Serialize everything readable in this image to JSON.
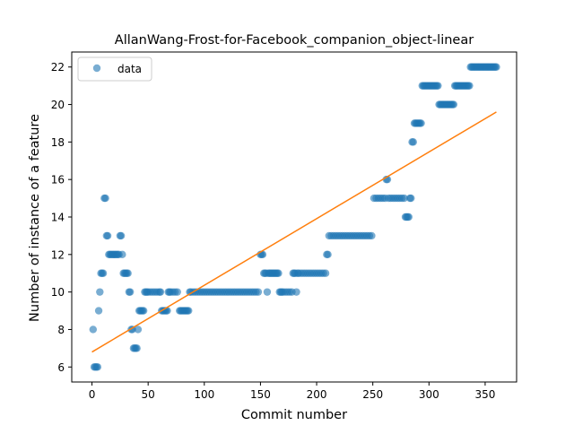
{
  "chart_data": {
    "type": "scatter",
    "title": "AllanWang-Frost-for-Facebook_companion_object-linear",
    "xlabel": "Commit number",
    "ylabel": "Number of instance of a feature",
    "xlim": [
      -18,
      378
    ],
    "ylim": [
      5.2,
      22.8
    ],
    "xticks": [
      0,
      50,
      100,
      150,
      200,
      250,
      300,
      350
    ],
    "yticks": [
      6,
      8,
      10,
      12,
      14,
      16,
      18,
      20,
      22
    ],
    "grid": false,
    "legend": {
      "position": "top-left",
      "entries": [
        "data"
      ]
    },
    "colors": {
      "scatter": "#1f77b4",
      "fit": "#ff7f0e"
    },
    "series": [
      {
        "name": "data",
        "kind": "scatter",
        "points": [
          [
            1,
            8
          ],
          [
            2,
            6
          ],
          [
            3,
            6
          ],
          [
            4,
            6
          ],
          [
            5,
            6
          ],
          [
            6,
            9
          ],
          [
            7,
            10
          ],
          [
            8,
            11
          ],
          [
            9,
            11
          ],
          [
            10,
            11
          ],
          [
            11,
            15
          ],
          [
            12,
            15
          ],
          [
            13,
            13
          ],
          [
            14,
            13
          ],
          [
            15,
            12
          ],
          [
            16,
            12
          ],
          [
            17,
            12
          ],
          [
            18,
            12
          ],
          [
            19,
            12
          ],
          [
            20,
            12
          ],
          [
            21,
            12
          ],
          [
            22,
            12
          ],
          [
            23,
            12
          ],
          [
            24,
            12
          ],
          [
            25,
            13
          ],
          [
            26,
            13
          ],
          [
            27,
            12
          ],
          [
            28,
            11
          ],
          [
            29,
            11
          ],
          [
            30,
            11
          ],
          [
            31,
            11
          ],
          [
            32,
            11
          ],
          [
            33,
            10
          ],
          [
            34,
            10
          ],
          [
            35,
            8
          ],
          [
            36,
            8
          ],
          [
            37,
            7
          ],
          [
            38,
            7
          ],
          [
            39,
            7
          ],
          [
            40,
            7
          ],
          [
            41,
            8
          ],
          [
            42,
            9
          ],
          [
            43,
            9
          ],
          [
            44,
            9
          ],
          [
            45,
            9
          ],
          [
            46,
            9
          ],
          [
            47,
            10
          ],
          [
            48,
            10
          ],
          [
            49,
            10
          ],
          [
            50,
            10
          ],
          [
            52,
            10
          ],
          [
            54,
            10
          ],
          [
            56,
            10
          ],
          [
            58,
            10
          ],
          [
            60,
            10
          ],
          [
            61,
            10
          ],
          [
            62,
            9
          ],
          [
            63,
            9
          ],
          [
            64,
            9
          ],
          [
            65,
            9
          ],
          [
            66,
            9
          ],
          [
            67,
            9
          ],
          [
            68,
            10
          ],
          [
            69,
            10
          ],
          [
            70,
            10
          ],
          [
            72,
            10
          ],
          [
            74,
            10
          ],
          [
            76,
            10
          ],
          [
            78,
            9
          ],
          [
            79,
            9
          ],
          [
            80,
            9
          ],
          [
            81,
            9
          ],
          [
            82,
            9
          ],
          [
            83,
            9
          ],
          [
            84,
            9
          ],
          [
            85,
            9
          ],
          [
            86,
            9
          ],
          [
            87,
            10
          ],
          [
            88,
            10
          ],
          [
            90,
            10
          ],
          [
            92,
            10
          ],
          [
            94,
            10
          ],
          [
            96,
            10
          ],
          [
            98,
            10
          ],
          [
            100,
            10
          ],
          [
            102,
            10
          ],
          [
            104,
            10
          ],
          [
            106,
            10
          ],
          [
            108,
            10
          ],
          [
            110,
            10
          ],
          [
            112,
            10
          ],
          [
            114,
            10
          ],
          [
            116,
            10
          ],
          [
            118,
            10
          ],
          [
            120,
            10
          ],
          [
            122,
            10
          ],
          [
            124,
            10
          ],
          [
            126,
            10
          ],
          [
            128,
            10
          ],
          [
            130,
            10
          ],
          [
            132,
            10
          ],
          [
            134,
            10
          ],
          [
            136,
            10
          ],
          [
            138,
            10
          ],
          [
            140,
            10
          ],
          [
            142,
            10
          ],
          [
            144,
            10
          ],
          [
            146,
            10
          ],
          [
            148,
            10
          ],
          [
            150,
            12
          ],
          [
            151,
            12
          ],
          [
            152,
            12
          ],
          [
            153,
            11
          ],
          [
            154,
            11
          ],
          [
            155,
            11
          ],
          [
            156,
            10
          ],
          [
            157,
            11
          ],
          [
            158,
            11
          ],
          [
            159,
            11
          ],
          [
            160,
            11
          ],
          [
            161,
            11
          ],
          [
            162,
            11
          ],
          [
            163,
            11
          ],
          [
            164,
            11
          ],
          [
            165,
            11
          ],
          [
            166,
            11
          ],
          [
            167,
            10
          ],
          [
            168,
            10
          ],
          [
            169,
            10
          ],
          [
            170,
            10
          ],
          [
            172,
            10
          ],
          [
            174,
            10
          ],
          [
            176,
            10
          ],
          [
            178,
            10
          ],
          [
            179,
            11
          ],
          [
            180,
            11
          ],
          [
            181,
            11
          ],
          [
            182,
            10
          ],
          [
            183,
            11
          ],
          [
            184,
            11
          ],
          [
            186,
            11
          ],
          [
            188,
            11
          ],
          [
            190,
            11
          ],
          [
            192,
            11
          ],
          [
            194,
            11
          ],
          [
            196,
            11
          ],
          [
            198,
            11
          ],
          [
            200,
            11
          ],
          [
            202,
            11
          ],
          [
            204,
            11
          ],
          [
            206,
            11
          ],
          [
            208,
            11
          ],
          [
            209,
            12
          ],
          [
            210,
            12
          ],
          [
            211,
            13
          ],
          [
            213,
            13
          ],
          [
            215,
            13
          ],
          [
            217,
            13
          ],
          [
            219,
            13
          ],
          [
            221,
            13
          ],
          [
            223,
            13
          ],
          [
            225,
            13
          ],
          [
            227,
            13
          ],
          [
            229,
            13
          ],
          [
            231,
            13
          ],
          [
            233,
            13
          ],
          [
            235,
            13
          ],
          [
            237,
            13
          ],
          [
            239,
            13
          ],
          [
            241,
            13
          ],
          [
            243,
            13
          ],
          [
            245,
            13
          ],
          [
            247,
            13
          ],
          [
            249,
            13
          ],
          [
            251,
            15
          ],
          [
            253,
            15
          ],
          [
            255,
            15
          ],
          [
            257,
            15
          ],
          [
            259,
            15
          ],
          [
            261,
            15
          ],
          [
            262,
            16
          ],
          [
            263,
            16
          ],
          [
            264,
            15
          ],
          [
            266,
            15
          ],
          [
            268,
            15
          ],
          [
            270,
            15
          ],
          [
            272,
            15
          ],
          [
            274,
            15
          ],
          [
            276,
            15
          ],
          [
            278,
            15
          ],
          [
            279,
            14
          ],
          [
            280,
            14
          ],
          [
            281,
            14
          ],
          [
            282,
            14
          ],
          [
            283,
            15
          ],
          [
            284,
            15
          ],
          [
            285,
            18
          ],
          [
            286,
            18
          ],
          [
            287,
            19
          ],
          [
            288,
            19
          ],
          [
            289,
            19
          ],
          [
            290,
            19
          ],
          [
            291,
            19
          ],
          [
            292,
            19
          ],
          [
            293,
            19
          ],
          [
            294,
            21
          ],
          [
            295,
            21
          ],
          [
            296,
            21
          ],
          [
            297,
            21
          ],
          [
            298,
            21
          ],
          [
            299,
            21
          ],
          [
            300,
            21
          ],
          [
            301,
            21
          ],
          [
            302,
            21
          ],
          [
            303,
            21
          ],
          [
            304,
            21
          ],
          [
            305,
            21
          ],
          [
            306,
            21
          ],
          [
            307,
            21
          ],
          [
            308,
            21
          ],
          [
            309,
            20
          ],
          [
            310,
            20
          ],
          [
            311,
            20
          ],
          [
            312,
            20
          ],
          [
            313,
            20
          ],
          [
            314,
            20
          ],
          [
            315,
            20
          ],
          [
            316,
            20
          ],
          [
            317,
            20
          ],
          [
            318,
            20
          ],
          [
            319,
            20
          ],
          [
            320,
            20
          ],
          [
            321,
            20
          ],
          [
            322,
            20
          ],
          [
            323,
            21
          ],
          [
            324,
            21
          ],
          [
            325,
            21
          ],
          [
            326,
            21
          ],
          [
            327,
            21
          ],
          [
            328,
            21
          ],
          [
            329,
            21
          ],
          [
            330,
            21
          ],
          [
            331,
            21
          ],
          [
            332,
            21
          ],
          [
            333,
            21
          ],
          [
            334,
            21
          ],
          [
            335,
            21
          ],
          [
            336,
            21
          ],
          [
            337,
            22
          ],
          [
            338,
            22
          ],
          [
            339,
            22
          ],
          [
            340,
            22
          ],
          [
            341,
            22
          ],
          [
            342,
            22
          ],
          [
            343,
            22
          ],
          [
            344,
            22
          ],
          [
            345,
            22
          ],
          [
            346,
            22
          ],
          [
            347,
            22
          ],
          [
            348,
            22
          ],
          [
            349,
            22
          ],
          [
            350,
            22
          ],
          [
            351,
            22
          ],
          [
            352,
            22
          ],
          [
            353,
            22
          ],
          [
            354,
            22
          ],
          [
            355,
            22
          ],
          [
            356,
            22
          ],
          [
            357,
            22
          ],
          [
            358,
            22
          ],
          [
            359,
            22
          ],
          [
            360,
            22
          ]
        ]
      },
      {
        "kind": "line",
        "points": [
          [
            0,
            6.8
          ],
          [
            360,
            19.6
          ]
        ]
      }
    ]
  }
}
